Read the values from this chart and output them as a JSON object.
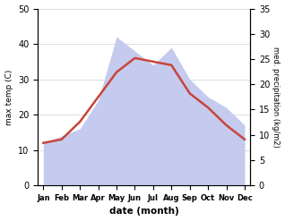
{
  "months": [
    "Jan",
    "Feb",
    "Mar",
    "Apr",
    "May",
    "Jun",
    "Jul",
    "Aug",
    "Sep",
    "Oct",
    "Nov",
    "Dec"
  ],
  "temp": [
    12,
    13,
    18,
    25,
    32,
    36,
    35,
    34,
    26,
    22,
    17,
    13
  ],
  "precip": [
    12,
    14,
    16,
    24,
    42,
    38,
    34,
    39,
    30,
    25,
    22,
    17
  ],
  "temp_color": "#c8453a",
  "precip_fill_color": "#c5cbee",
  "temp_ylim": [
    0,
    50
  ],
  "precip_ylim": [
    0,
    35
  ],
  "xlabel": "date (month)",
  "ylabel_left": "max temp (C)",
  "ylabel_right": "med. precipitation (kg/m2)",
  "grid_color": "#d0d0d0",
  "temp_yticks": [
    0,
    10,
    20,
    30,
    40,
    50
  ],
  "precip_yticks": [
    0,
    5,
    10,
    15,
    20,
    25,
    30,
    35
  ]
}
